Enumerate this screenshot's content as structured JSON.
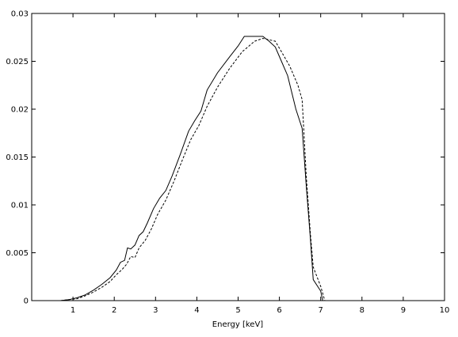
{
  "chart_data": {
    "type": "line",
    "title": "",
    "xlabel": "Energy [keV]",
    "ylabel": "",
    "xlim": [
      0,
      10
    ],
    "ylim": [
      0,
      0.03
    ],
    "x_ticks": [
      1,
      2,
      3,
      4,
      5,
      6,
      7,
      8,
      9,
      10
    ],
    "x_tick_labels": [
      "1",
      "2",
      "3",
      "4",
      "5",
      "6",
      "7",
      "8",
      "9",
      "10"
    ],
    "y_ticks": [
      0,
      0.005,
      0.01,
      0.015,
      0.02,
      0.025,
      0.03
    ],
    "y_tick_labels": [
      "0",
      "0.005",
      "0.01",
      "0.015",
      "0.02",
      "0.025",
      "0.03"
    ],
    "grid": false,
    "legend": "none",
    "series": [
      {
        "style": "solid",
        "color": "#000000",
        "points": [
          [
            0.7,
            0
          ],
          [
            0.9,
            0.0001
          ],
          [
            1.1,
            0.0003
          ],
          [
            1.3,
            0.0006
          ],
          [
            1.5,
            0.0011
          ],
          [
            1.7,
            0.0017
          ],
          [
            1.9,
            0.0024
          ],
          [
            2.05,
            0.0032
          ],
          [
            2.15,
            0.004
          ],
          [
            2.25,
            0.0042
          ],
          [
            2.32,
            0.0055
          ],
          [
            2.4,
            0.0054
          ],
          [
            2.5,
            0.0058
          ],
          [
            2.6,
            0.0068
          ],
          [
            2.7,
            0.0072
          ],
          [
            2.8,
            0.0081
          ],
          [
            2.95,
            0.0096
          ],
          [
            3.1,
            0.0107
          ],
          [
            3.25,
            0.0115
          ],
          [
            3.4,
            0.013
          ],
          [
            3.6,
            0.0153
          ],
          [
            3.8,
            0.0177
          ],
          [
            3.95,
            0.0188
          ],
          [
            4.1,
            0.0198
          ],
          [
            4.25,
            0.022
          ],
          [
            4.5,
            0.0238
          ],
          [
            4.8,
            0.0255
          ],
          [
            5.0,
            0.0266
          ],
          [
            5.15,
            0.0276
          ],
          [
            5.6,
            0.0276
          ],
          [
            5.75,
            0.0271
          ],
          [
            5.9,
            0.0265
          ],
          [
            6.05,
            0.025
          ],
          [
            6.2,
            0.0235
          ],
          [
            6.4,
            0.02
          ],
          [
            6.55,
            0.018
          ],
          [
            6.65,
            0.012
          ],
          [
            6.75,
            0.0065
          ],
          [
            6.82,
            0.0022
          ],
          [
            7.0,
            0.001
          ],
          [
            7.05,
            0.0
          ]
        ]
      },
      {
        "style": "dashed",
        "color": "#000000",
        "points": [
          [
            0.7,
            0
          ],
          [
            0.9,
            0.0001
          ],
          [
            1.1,
            0.0002
          ],
          [
            1.3,
            0.0005
          ],
          [
            1.5,
            0.0009
          ],
          [
            1.7,
            0.0014
          ],
          [
            1.9,
            0.002
          ],
          [
            2.05,
            0.0027
          ],
          [
            2.2,
            0.0033
          ],
          [
            2.3,
            0.0038
          ],
          [
            2.4,
            0.0046
          ],
          [
            2.5,
            0.0045
          ],
          [
            2.6,
            0.0055
          ],
          [
            2.75,
            0.0063
          ],
          [
            2.9,
            0.0075
          ],
          [
            3.05,
            0.009
          ],
          [
            3.25,
            0.0105
          ],
          [
            3.45,
            0.0125
          ],
          [
            3.65,
            0.0147
          ],
          [
            3.85,
            0.0168
          ],
          [
            4.05,
            0.0183
          ],
          [
            4.25,
            0.0203
          ],
          [
            4.5,
            0.0223
          ],
          [
            4.8,
            0.0243
          ],
          [
            5.1,
            0.026
          ],
          [
            5.4,
            0.0271
          ],
          [
            5.6,
            0.0274
          ],
          [
            5.9,
            0.0271
          ],
          [
            6.05,
            0.026
          ],
          [
            6.25,
            0.0245
          ],
          [
            6.45,
            0.0225
          ],
          [
            6.55,
            0.021
          ],
          [
            6.65,
            0.013
          ],
          [
            6.75,
            0.007
          ],
          [
            6.82,
            0.0035
          ],
          [
            7.0,
            0.0015
          ],
          [
            7.1,
            0.0
          ]
        ]
      }
    ]
  }
}
